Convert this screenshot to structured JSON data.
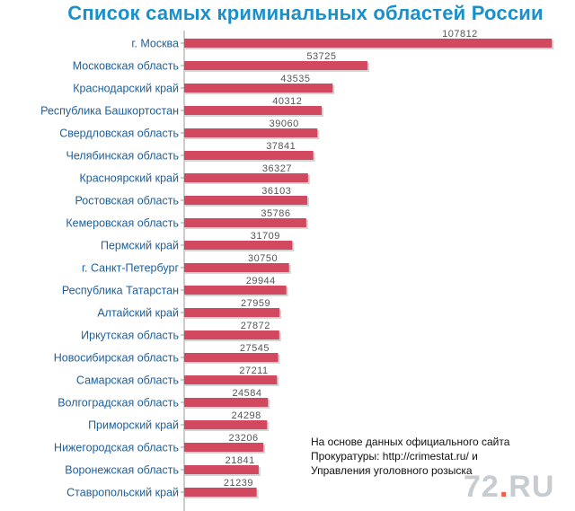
{
  "chart_data": {
    "type": "bar",
    "orientation": "horizontal",
    "title": "Список самых криминальных областей России",
    "categories": [
      "г. Москва",
      "Московская область",
      "Краснодарский край",
      "Республика Башкортостан",
      "Свердловская область",
      "Челябинская область",
      "Красноярский край",
      "Ростовская область",
      "Кемеровская область",
      "Пермский край",
      "г. Санкт-Петербург",
      "Республика Татарстан",
      "Алтайский край",
      "Иркутская область",
      "Новосибирская область",
      "Самарская область",
      "Волгоградская область",
      "Приморский край",
      "Нижегородская область",
      "Воронежская область",
      "Ставропольский край"
    ],
    "values": [
      107812,
      53725,
      43535,
      40312,
      39060,
      37841,
      36327,
      36103,
      35786,
      31709,
      30750,
      29944,
      27959,
      27872,
      27545,
      27211,
      24584,
      24298,
      23206,
      21841,
      21239
    ],
    "data_labels": [
      "107812",
      "53725",
      "43535",
      "40312",
      "39060",
      "37841",
      "36327",
      "36103",
      "35786",
      "31709",
      "30750",
      "29944",
      "27959",
      "27872",
      "27545",
      "27211",
      "24584",
      "24298",
      "23206",
      "21841",
      "21239"
    ],
    "xlim": [
      0,
      108000
    ],
    "grid": false,
    "bar_color": "#d2485f",
    "label_color": "#1f5f99",
    "value_color": "#555555",
    "title_color": "#1a8fc9"
  },
  "source_note": {
    "line1": "На основе данных официального сайта",
    "line2": "Прокуратуры: http://crimestat.ru/ и",
    "line3": "Управления уголовного розыска"
  },
  "logo": {
    "text_left": "72",
    "dot": ".",
    "text_right": "RU"
  }
}
